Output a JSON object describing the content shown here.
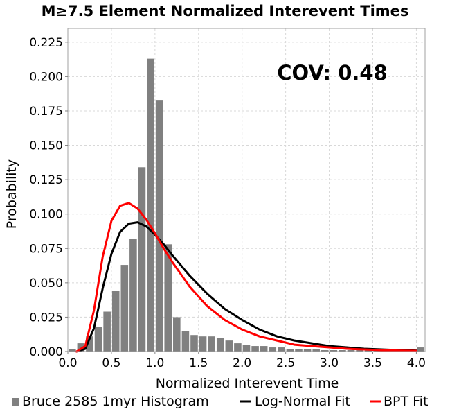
{
  "chart_data": {
    "type": "bar",
    "title": "M≥7.5 Element Normalized Interevent Times",
    "xlabel": "Normalized Interevent Time",
    "ylabel": "Probability",
    "xlim": [
      0.0,
      4.1
    ],
    "ylim": [
      0.0,
      0.235
    ],
    "xticks": [
      "0.0",
      "0.5",
      "1.0",
      "1.5",
      "2.0",
      "2.5",
      "3.0",
      "3.5",
      "4.0"
    ],
    "yticks": [
      "0.000",
      "0.025",
      "0.050",
      "0.075",
      "0.100",
      "0.125",
      "0.150",
      "0.175",
      "0.200",
      "0.225"
    ],
    "grid": true,
    "annotation": "COV: 0.48",
    "legend_position": "bottom",
    "series": [
      {
        "name": "Bruce 2585 1myr Histogram",
        "kind": "histogram",
        "color": "#808080",
        "bin_width": 0.1,
        "x": [
          0.0,
          0.1,
          0.2,
          0.3,
          0.4,
          0.5,
          0.6,
          0.7,
          0.8,
          0.9,
          1.0,
          1.1,
          1.2,
          1.3,
          1.4,
          1.5,
          1.6,
          1.7,
          1.8,
          1.9,
          2.0,
          2.1,
          2.2,
          2.3,
          2.4,
          2.5,
          2.6,
          2.7,
          2.8,
          2.9,
          3.0,
          3.1,
          3.2,
          3.3,
          3.4,
          3.5,
          3.6,
          3.7,
          3.8,
          3.9,
          4.0
        ],
        "values": [
          0.002,
          0.006,
          0.011,
          0.018,
          0.029,
          0.044,
          0.063,
          0.082,
          0.134,
          0.213,
          0.183,
          0.078,
          0.025,
          0.015,
          0.012,
          0.011,
          0.011,
          0.01,
          0.008,
          0.006,
          0.005,
          0.004,
          0.004,
          0.003,
          0.003,
          0.002,
          0.002,
          0.002,
          0.002,
          0.001,
          0.001,
          0.001,
          0.001,
          0.001,
          0.001,
          0.001,
          0.001,
          0.001,
          0.001,
          0.001,
          0.003
        ]
      },
      {
        "name": "Log-Normal Fit",
        "kind": "line",
        "color": "#000000",
        "x": [
          0.1,
          0.2,
          0.3,
          0.4,
          0.5,
          0.6,
          0.7,
          0.8,
          0.9,
          1.0,
          1.1,
          1.2,
          1.4,
          1.6,
          1.8,
          2.0,
          2.2,
          2.4,
          2.6,
          2.8,
          3.0,
          3.2,
          3.4,
          3.6,
          3.8,
          4.0
        ],
        "values": [
          0.0,
          0.002,
          0.017,
          0.046,
          0.071,
          0.087,
          0.093,
          0.094,
          0.091,
          0.085,
          0.078,
          0.07,
          0.055,
          0.042,
          0.031,
          0.023,
          0.016,
          0.011,
          0.008,
          0.006,
          0.004,
          0.003,
          0.002,
          0.0015,
          0.001,
          0.0007
        ]
      },
      {
        "name": "BPT Fit",
        "kind": "line",
        "color": "#ff0000",
        "x": [
          0.1,
          0.2,
          0.3,
          0.4,
          0.5,
          0.6,
          0.7,
          0.8,
          0.9,
          1.0,
          1.1,
          1.2,
          1.4,
          1.6,
          1.8,
          2.0,
          2.2,
          2.4,
          2.6,
          2.8,
          3.0,
          3.2,
          3.4,
          3.6,
          3.8,
          4.0
        ],
        "values": [
          0.0,
          0.004,
          0.03,
          0.069,
          0.095,
          0.106,
          0.108,
          0.104,
          0.096,
          0.086,
          0.075,
          0.065,
          0.047,
          0.033,
          0.023,
          0.016,
          0.011,
          0.008,
          0.005,
          0.004,
          0.003,
          0.002,
          0.0015,
          0.001,
          0.0007,
          0.0005
        ]
      }
    ]
  }
}
